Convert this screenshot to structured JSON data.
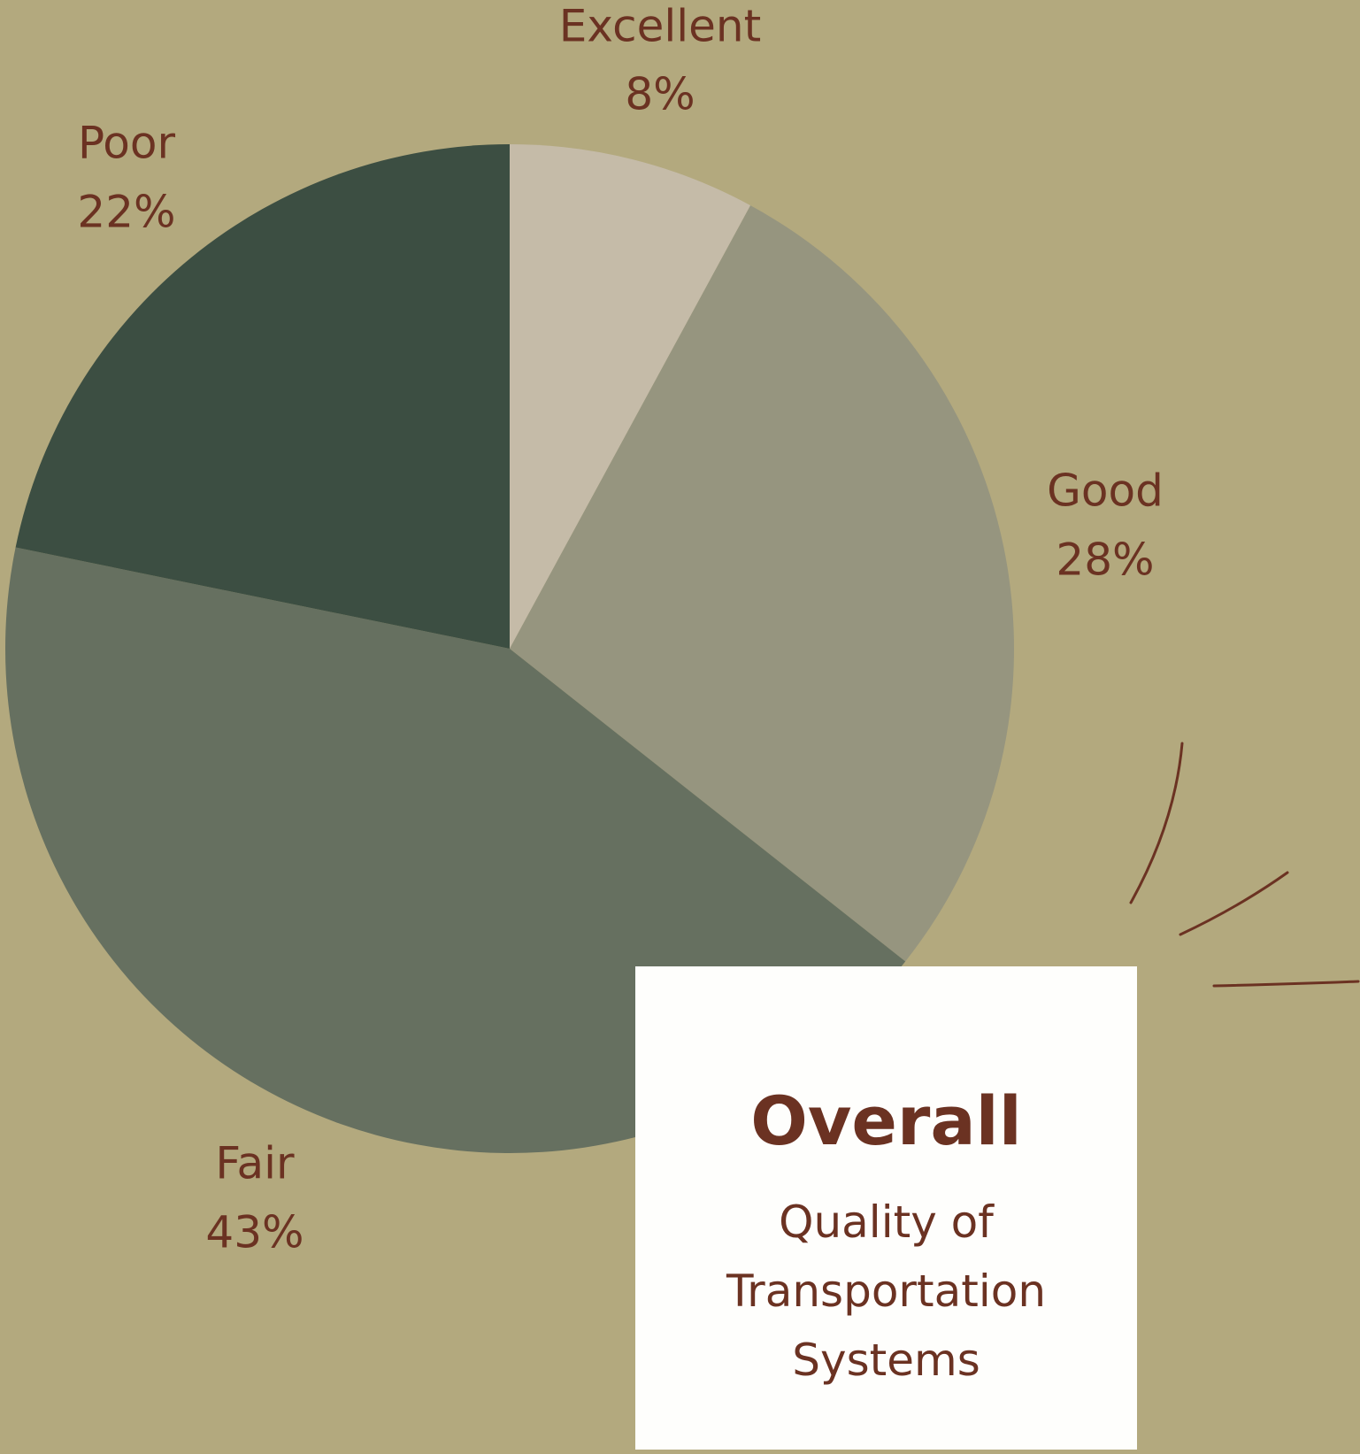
{
  "chart_data": {
    "type": "pie",
    "title": "Overall",
    "subtitle": "Quality of Transportation Systems",
    "categories": [
      "Excellent",
      "Good",
      "Fair",
      "Poor"
    ],
    "values": [
      8,
      28,
      43,
      22
    ],
    "value_labels": [
      "8%",
      "28%",
      "43%",
      "22%"
    ],
    "colors": [
      "#c5bba8",
      "#96957f",
      "#667060",
      "#3c4e42"
    ]
  }
}
